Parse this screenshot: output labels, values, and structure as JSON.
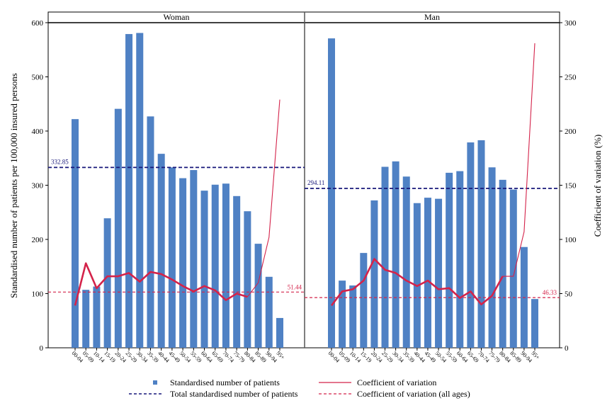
{
  "chart_data": {
    "type": "bar",
    "ylabel": "Standardised number of patients per 100,000 insured persons",
    "y2label": "Coefficient of variation (%)",
    "ylim": [
      0,
      600
    ],
    "y2lim": [
      0,
      300
    ],
    "y_ticks": [
      "0",
      "100",
      "200",
      "300",
      "400",
      "500",
      "600"
    ],
    "y2_ticks": [
      "0",
      "50",
      "100",
      "150",
      "200",
      "250",
      "300"
    ],
    "categories": [
      "00-04",
      "05-09",
      "10-14",
      "15-19",
      "20-24",
      "25-29",
      "30-34",
      "35-39",
      "40-44",
      "45-49",
      "50-54",
      "55-59",
      "60-64",
      "65-69",
      "70-74",
      "75-79",
      "80-84",
      "85-89",
      "90-94",
      "95+"
    ],
    "panels": [
      {
        "title": "Woman",
        "patients": [
          422,
          107,
          113,
          239,
          441,
          579,
          581,
          427,
          358,
          333,
          313,
          328,
          290,
          301,
          303,
          280,
          252,
          192,
          131,
          55
        ],
        "cv": [
          39,
          78,
          55,
          66,
          66,
          69,
          61,
          70,
          68,
          63,
          57,
          52,
          57,
          53,
          44,
          50,
          47,
          60,
          102,
          229
        ],
        "total_standardised": 332.85,
        "total_label": "332.85",
        "cv_all_ages": 51.44,
        "cv_all_label": "51.44"
      },
      {
        "title": "Man",
        "patients": [
          571,
          124,
          115,
          175,
          272,
          334,
          344,
          316,
          267,
          277,
          275,
          323,
          326,
          379,
          383,
          333,
          310,
          292,
          186,
          90
        ],
        "cv": [
          39,
          52,
          54,
          62,
          82,
          72,
          69,
          62,
          57,
          62,
          54,
          55,
          46,
          52,
          40,
          48,
          66,
          66,
          107,
          281
        ],
        "total_standardised": 294.11,
        "total_label": "294.11",
        "cv_all_ages": 46.33,
        "cv_all_label": "46.33"
      }
    ],
    "legend": {
      "position": "bottom",
      "items": [
        "Standardised number of patients",
        "Coefficient of variation",
        "Total standardised number of patients",
        "Coefficient of variation (all ages)"
      ]
    },
    "colors": {
      "bar": "#4f81c4",
      "cv_line": "#d4234a",
      "total_line": "#17177a",
      "cv_all_line": "#d4234a"
    }
  }
}
